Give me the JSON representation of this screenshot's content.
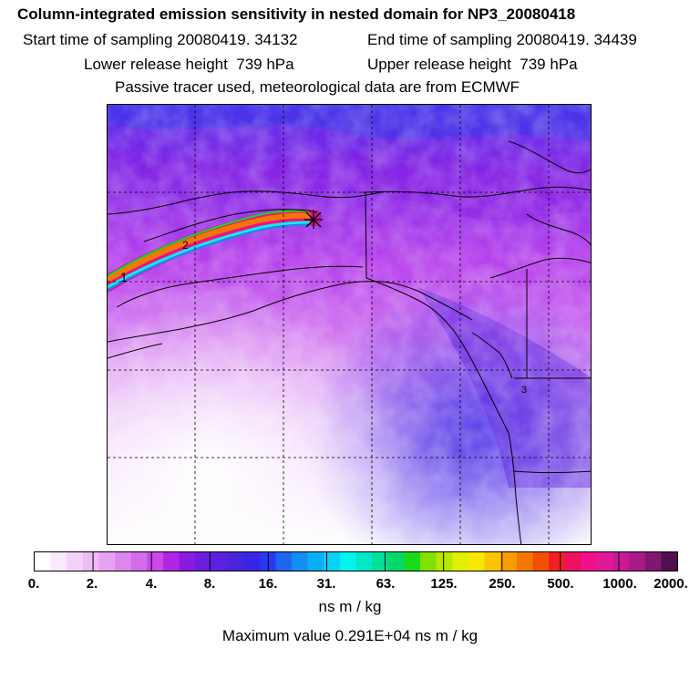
{
  "header": {
    "title": "Column-integrated emission sensitivity in nested domain for NP3_20080418",
    "start": "Start time of sampling 20080419. 34132",
    "end": "End time of sampling 20080419. 34439",
    "lower": "Lower release height  739 hPa",
    "upper": "Upper release height  739 hPa",
    "passive": "Passive tracer used, meteorological data are from ECMWF"
  },
  "map": {
    "release_marker_icon": "star-cross-icon",
    "labels": [
      "1",
      "2",
      "3"
    ]
  },
  "colorbar": {
    "colors": [
      "#ffffff",
      "#fae8fc",
      "#f4d2f8",
      "#eebcf5",
      "#e6a2f2",
      "#dc86ee",
      "#d46aec",
      "#cc46e8",
      "#b224e4",
      "#8a1ae2",
      "#6e1cde",
      "#5a22e0",
      "#4824dc",
      "#3a24e6",
      "#2a38f0",
      "#1f66f2",
      "#148ef4",
      "#0aaef6",
      "#08d2f8",
      "#00f4f0",
      "#00e8c8",
      "#00e09a",
      "#00d86a",
      "#18dc1a",
      "#80e000",
      "#b8e800",
      "#e0f000",
      "#f8e800",
      "#fcc400",
      "#f89c00",
      "#f47800",
      "#f25000",
      "#f02020",
      "#f01060",
      "#f0108a",
      "#e0189a",
      "#c8189a",
      "#a81a88",
      "#801870",
      "#501050"
    ],
    "ticks": [
      "0.",
      "2.",
      "4.",
      "8.",
      "16.",
      "31.",
      "63.",
      "125.",
      "250.",
      "500.",
      "1000.",
      "2000."
    ],
    "unit": "ns m / kg",
    "max_value": "Maximum value  0.291E+04 ns m / kg"
  }
}
